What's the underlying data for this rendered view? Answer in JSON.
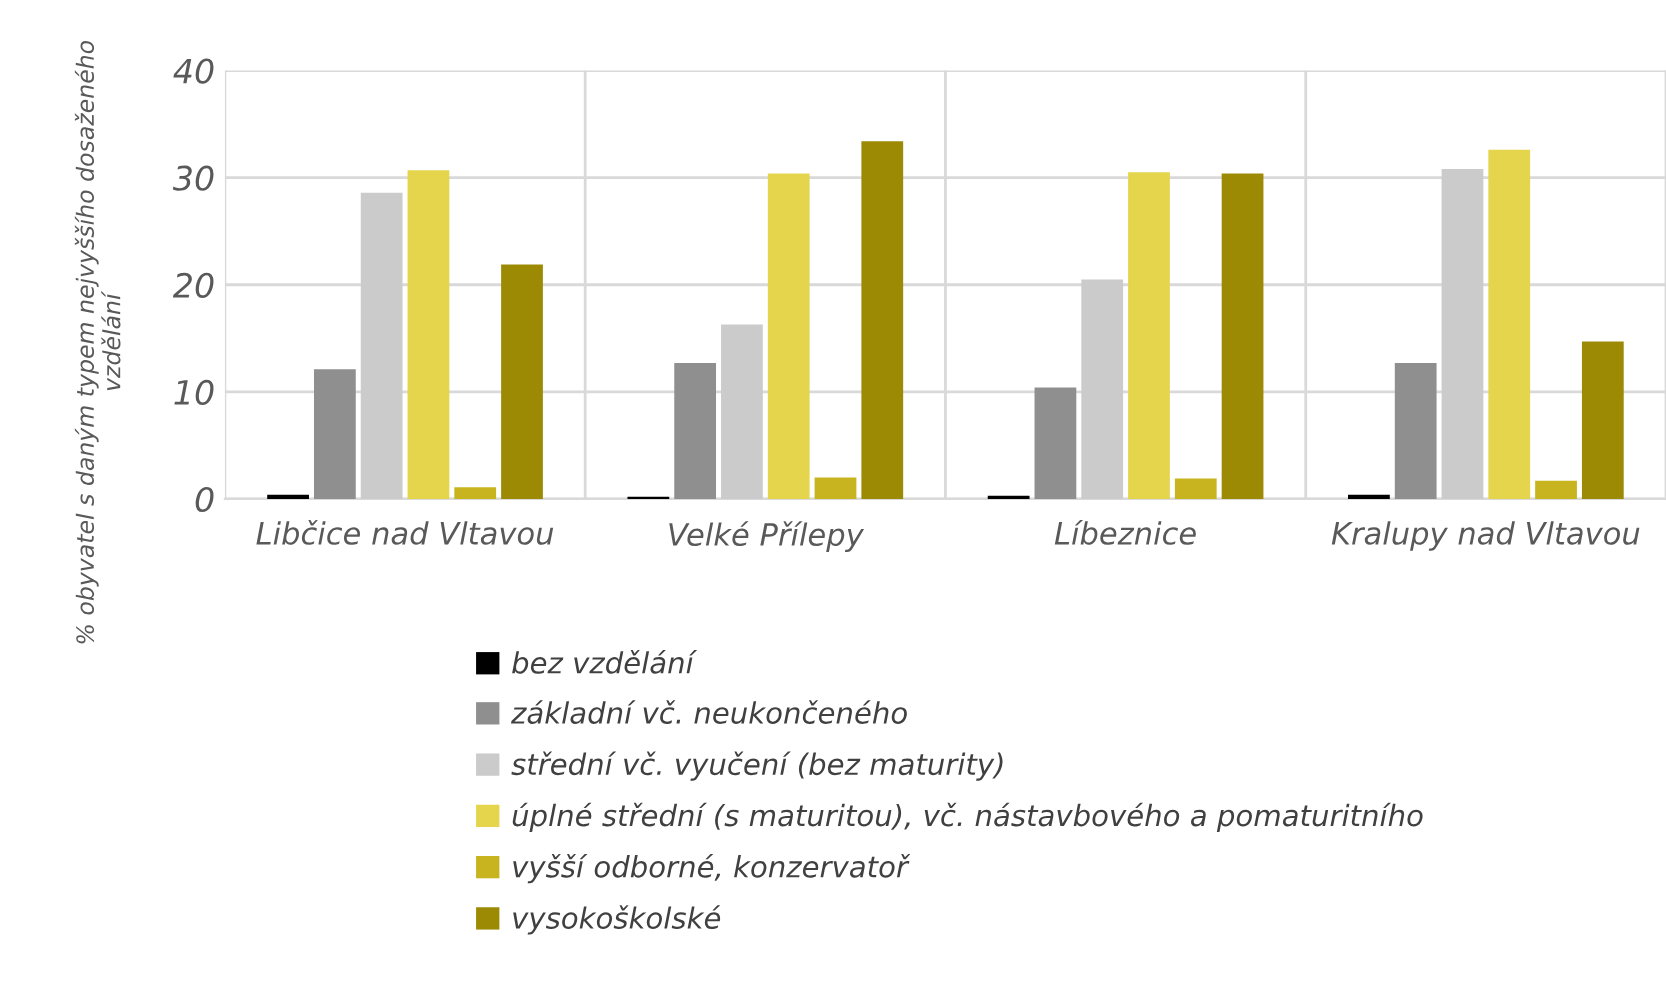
{
  "chart_data": {
    "type": "bar",
    "ylabel": "% obyvatel s daným typem nejvyššího dosaženého\nvzdělání",
    "categories": [
      "Libčice nad Vltavou",
      "Velké Přílepy",
      "Líbeznice",
      "Kralupy nad Vltavou"
    ],
    "series": [
      {
        "name": "bez vzdělání",
        "color": "#000000",
        "values": [
          0.4,
          0.2,
          0.3,
          0.4
        ]
      },
      {
        "name": "základní vč. neukončeného",
        "color": "#8f8f8f",
        "values": [
          12.1,
          12.7,
          10.4,
          12.7
        ]
      },
      {
        "name": "střední vč. vyučení (bez maturity)",
        "color": "#cbcbcb",
        "values": [
          28.6,
          16.3,
          20.5,
          30.8
        ]
      },
      {
        "name": "úplné střední (s maturitou), vč. nástavbového a pomaturitního",
        "color": "#e5d54d",
        "values": [
          30.7,
          30.4,
          30.5,
          32.6
        ]
      },
      {
        "name": "vyšší odborné, konzervatoř",
        "color": "#c8b41e",
        "values": [
          1.1,
          2.0,
          1.9,
          1.7
        ]
      },
      {
        "name": "vysokoškolské",
        "color": "#9c8a05",
        "values": [
          21.9,
          33.4,
          30.4,
          14.7
        ]
      }
    ],
    "ylim": [
      0,
      40
    ],
    "yticks": [
      0,
      10,
      20,
      30,
      40
    ],
    "grid": true,
    "legend": "bottom"
  }
}
